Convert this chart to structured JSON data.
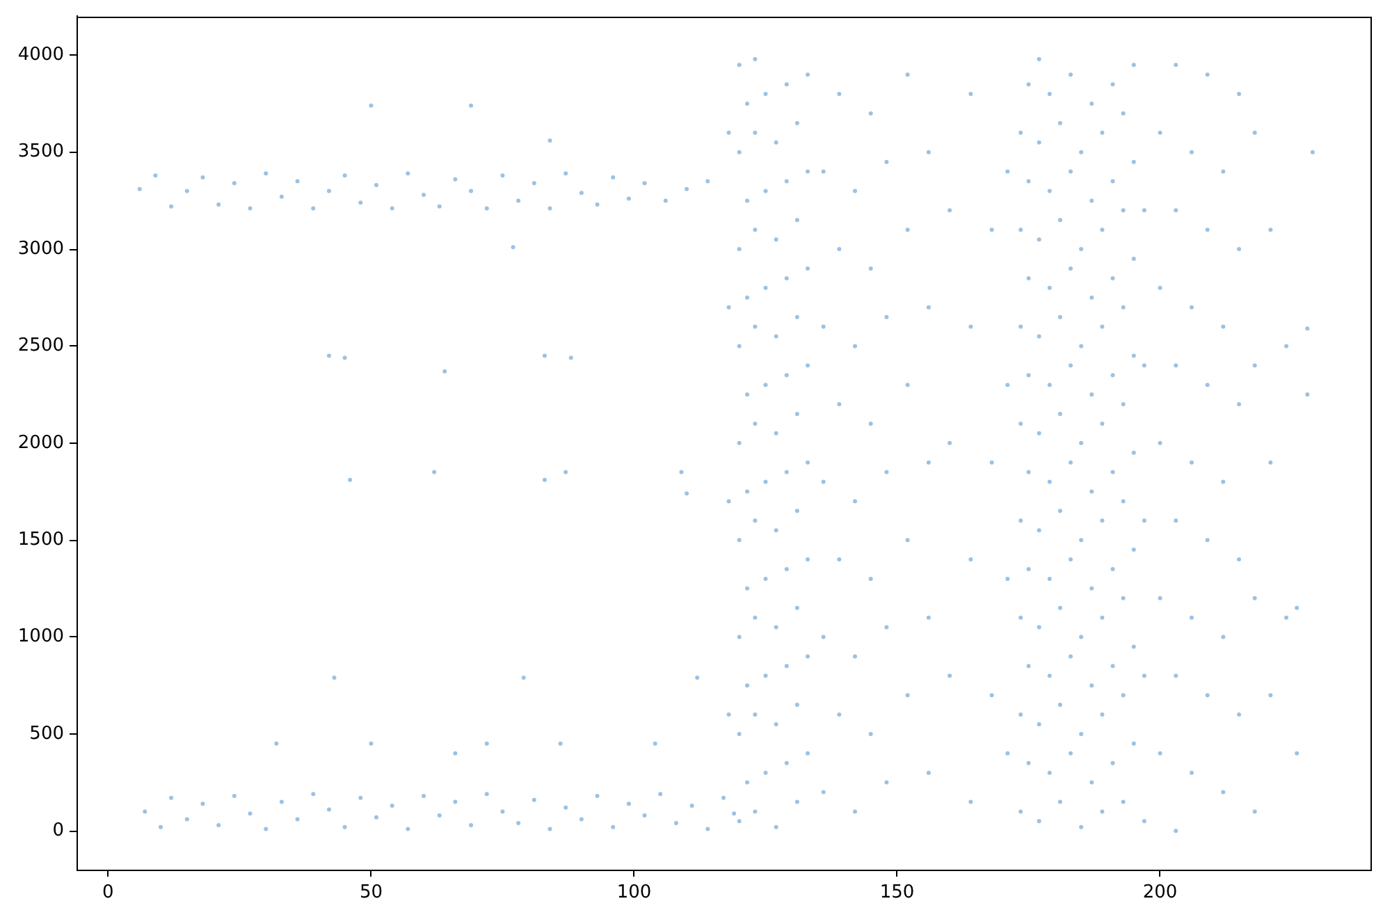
{
  "chart_data": {
    "type": "scatter",
    "color": "#9ac2e3",
    "marker": "circle",
    "xlim": [
      -6,
      240
    ],
    "ylim": [
      -200,
      4200
    ],
    "xticks": [
      0,
      50,
      100,
      150,
      200
    ],
    "yticks": [
      0,
      500,
      1000,
      1500,
      2000,
      2500,
      3000,
      3500,
      4000
    ],
    "x": [
      7,
      10,
      12,
      15,
      18,
      21,
      24,
      27,
      30,
      33,
      36,
      39,
      42,
      45,
      48,
      51,
      54,
      57,
      60,
      63,
      66,
      69,
      72,
      75,
      78,
      81,
      84,
      87,
      90,
      93,
      96,
      99,
      102,
      105,
      108,
      111,
      114,
      117,
      119,
      6,
      9,
      12,
      15,
      18,
      21,
      24,
      27,
      30,
      33,
      36,
      39,
      42,
      45,
      48,
      51,
      54,
      57,
      60,
      63,
      66,
      69,
      72,
      75,
      78,
      81,
      84,
      87,
      90,
      93,
      96,
      99,
      102,
      106,
      110,
      114,
      50,
      69,
      84,
      77,
      42,
      45,
      64,
      83,
      88,
      46,
      62,
      83,
      87,
      43,
      79,
      32,
      50,
      66,
      72,
      86,
      104,
      109,
      110,
      112,
      118,
      118,
      118,
      118,
      120,
      120,
      120,
      120,
      120,
      120,
      120,
      120,
      120,
      121.5,
      121.5,
      121.5,
      121.5,
      121.5,
      121.5,
      121.5,
      121.5,
      123,
      123,
      123,
      123,
      123,
      123,
      123,
      123,
      123,
      125,
      125,
      125,
      125,
      125,
      125,
      125,
      125,
      127,
      127,
      127,
      127,
      127,
      127,
      127,
      127,
      129,
      129,
      129,
      129,
      129,
      129,
      129,
      129,
      131,
      131,
      131,
      131,
      131,
      131,
      131,
      131,
      133,
      133,
      133,
      133,
      133,
      133,
      133,
      133,
      136,
      136,
      136,
      136,
      136,
      139,
      139,
      139,
      139,
      139,
      142,
      142,
      142,
      142,
      142,
      145,
      145,
      145,
      145,
      145,
      148,
      148,
      148,
      148,
      148,
      152,
      152,
      152,
      152,
      152,
      156,
      156,
      156,
      156,
      156,
      160,
      160,
      160,
      164,
      164,
      164,
      164,
      168,
      168,
      168,
      171,
      171,
      171,
      171,
      173.5,
      173.5,
      173.5,
      173.5,
      173.5,
      173.5,
      173.5,
      173.5,
      175,
      175,
      175,
      175,
      175,
      175,
      175,
      175,
      177,
      177,
      177,
      177,
      177,
      177,
      177,
      177,
      177,
      179,
      179,
      179,
      179,
      179,
      179,
      179,
      179,
      181,
      181,
      181,
      181,
      181,
      181,
      181,
      181,
      183,
      183,
      183,
      183,
      183,
      183,
      183,
      183,
      185,
      185,
      185,
      185,
      185,
      185,
      185,
      185,
      187,
      187,
      187,
      187,
      187,
      187,
      187,
      187,
      189,
      189,
      189,
      189,
      189,
      189,
      189,
      189,
      191,
      191,
      191,
      191,
      191,
      191,
      191,
      191,
      193,
      193,
      193,
      193,
      193,
      193,
      193,
      193,
      195,
      195,
      195,
      195,
      195,
      195,
      195,
      195,
      197,
      197,
      197,
      197,
      197,
      200,
      200,
      200,
      200,
      200,
      203,
      203,
      203,
      203,
      203,
      203,
      206,
      206,
      206,
      206,
      206,
      209,
      209,
      209,
      209,
      209,
      212,
      212,
      212,
      212,
      212,
      215,
      215,
      215,
      215,
      215,
      218,
      218,
      218,
      218,
      221,
      221,
      221,
      224,
      224,
      226,
      226,
      228,
      228,
      229
    ],
    "values": [
      100,
      20,
      170,
      60,
      140,
      30,
      180,
      90,
      10,
      150,
      60,
      190,
      110,
      20,
      170,
      70,
      130,
      10,
      180,
      80,
      150,
      30,
      190,
      100,
      40,
      160,
      10,
      120,
      60,
      180,
      20,
      140,
      80,
      190,
      40,
      130,
      10,
      170,
      90,
      3310,
      3380,
      3220,
      3300,
      3370,
      3230,
      3340,
      3210,
      3390,
      3270,
      3350,
      3210,
      3300,
      3380,
      3240,
      3330,
      3210,
      3390,
      3280,
      3220,
      3360,
      3300,
      3210,
      3380,
      3250,
      3340,
      3210,
      3390,
      3290,
      3230,
      3370,
      3260,
      3340,
      3250,
      3310,
      3350,
      3740,
      3740,
      3560,
      3010,
      2450,
      2440,
      2370,
      2450,
      2440,
      1810,
      1850,
      1810,
      1850,
      790,
      790,
      450,
      450,
      400,
      450,
      450,
      450,
      1850,
      1740,
      790,
      600,
      1700,
      2700,
      3600,
      50,
      500,
      1000,
      1500,
      2000,
      2500,
      3000,
      3500,
      3950,
      250,
      750,
      1250,
      1750,
      2250,
      2750,
      3250,
      3750,
      100,
      600,
      1100,
      1600,
      2100,
      2600,
      3100,
      3600,
      3980,
      300,
      800,
      1300,
      1800,
      2300,
      2800,
      3300,
      3800,
      20,
      550,
      1050,
      1550,
      2050,
      2550,
      3050,
      3550,
      350,
      850,
      1350,
      1850,
      2350,
      2850,
      3350,
      3850,
      150,
      650,
      1150,
      1650,
      2150,
      2650,
      3150,
      3650,
      400,
      900,
      1400,
      1900,
      2400,
      2900,
      3400,
      3900,
      200,
      1000,
      1800,
      2600,
      3400,
      600,
      1400,
      2200,
      3000,
      3800,
      100,
      900,
      1700,
      2500,
      3300,
      500,
      1300,
      2100,
      2900,
      3700,
      250,
      1050,
      1850,
      2650,
      3450,
      700,
      1500,
      2300,
      3100,
      3900,
      300,
      1100,
      1900,
      2700,
      3500,
      800,
      2000,
      3200,
      150,
      1400,
      2600,
      3800,
      700,
      1900,
      3100,
      400,
      1300,
      2300,
      3400,
      100,
      600,
      1100,
      1600,
      2100,
      2600,
      3100,
      3600,
      350,
      850,
      1350,
      1850,
      2350,
      2850,
      3350,
      3850,
      50,
      550,
      1050,
      1550,
      2050,
      2550,
      3050,
      3550,
      3980,
      300,
      800,
      1300,
      1800,
      2300,
      2800,
      3300,
      3800,
      150,
      650,
      1150,
      1650,
      2150,
      2650,
      3150,
      3650,
      400,
      900,
      1400,
      1900,
      2400,
      2900,
      3400,
      3900,
      20,
      500,
      1000,
      1500,
      2000,
      2500,
      3000,
      3500,
      250,
      750,
      1250,
      1750,
      2250,
      2750,
      3250,
      3750,
      100,
      600,
      1100,
      1600,
      2100,
      2600,
      3100,
      3600,
      350,
      850,
      1350,
      1850,
      2350,
      2850,
      3350,
      3850,
      150,
      700,
      1200,
      1700,
      2200,
      2700,
      3200,
      3700,
      450,
      950,
      1450,
      1950,
      2450,
      2950,
      3450,
      3950,
      50,
      800,
      1600,
      2400,
      3200,
      400,
      1200,
      2000,
      2800,
      3600,
      0,
      800,
      1600,
      2400,
      3200,
      3950,
      300,
      1100,
      1900,
      2700,
      3500,
      700,
      1500,
      2300,
      3100,
      3900,
      200,
      1000,
      1800,
      2600,
      3400,
      600,
      1400,
      2200,
      3000,
      3800,
      100,
      1200,
      2400,
      3600,
      700,
      1900,
      3100,
      1100,
      2500,
      400,
      1150,
      2250,
      2590,
      3500
    ]
  }
}
